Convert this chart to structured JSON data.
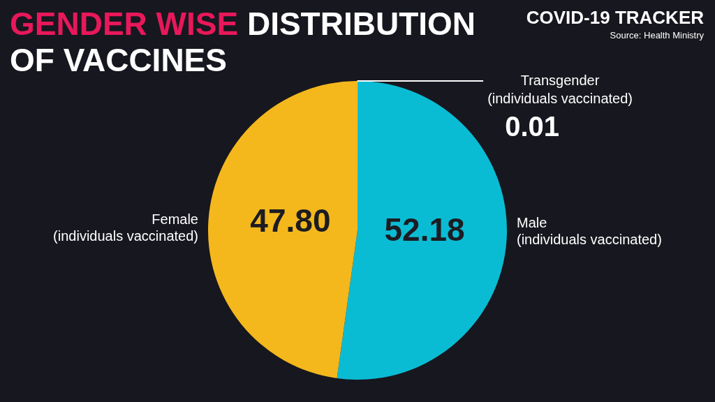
{
  "chart_data": {
    "type": "pie",
    "title": "GENDER WISE DISTRIBUTION OF VACCINES",
    "subtitle": "COVID-19 TRACKER",
    "annotations": [
      "Source: Health Ministry"
    ],
    "categories": [
      "Transgender (individuals vaccinated)",
      "Male (individuals vaccinated)",
      "Female (individuals vaccinated)"
    ],
    "values": [
      0.01,
      52.18,
      47.8
    ],
    "colors": [
      "#ffffff",
      "#0abcd3",
      "#f4b81c"
    ],
    "value_labels": [
      "0.01",
      "52.18",
      "47.80"
    ]
  }
}
